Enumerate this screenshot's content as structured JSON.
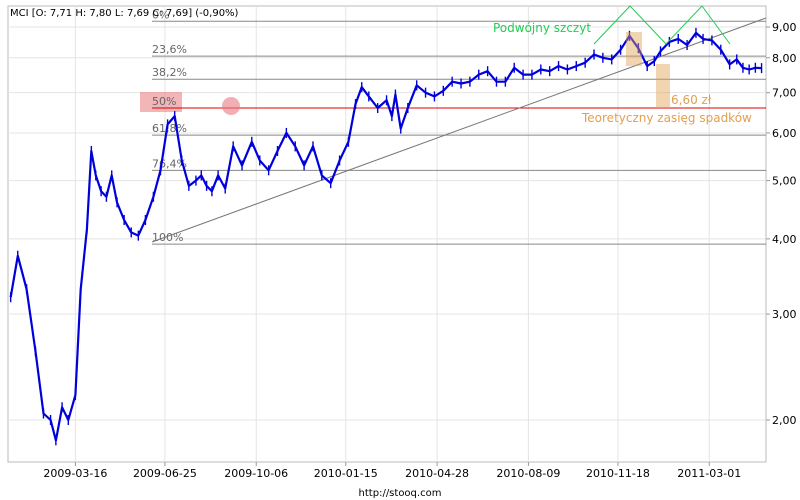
{
  "header": {
    "ohlc_label": "MCI [O: 7,71  H: 7,80  L: 7,69  C: 7,69] (-0,90%)"
  },
  "footer": {
    "source": "http://stooq.com"
  },
  "annotations": {
    "double_top": "Podwójny szczyt",
    "target_value": "6,60 zł",
    "target_label": "Teoretyczny zasięg spadków"
  },
  "fibonacci": [
    {
      "label": "0%",
      "price": 9.2
    },
    {
      "label": "23,6%",
      "price": 8.05
    },
    {
      "label": "38,2%",
      "price": 7.37
    },
    {
      "label": "50%",
      "price": 6.6
    },
    {
      "label": "61,8%",
      "price": 5.95
    },
    {
      "label": "76,4%",
      "price": 5.2
    },
    {
      "label": "100%",
      "price": 3.92
    }
  ],
  "colors": {
    "price_line": "#0000dd",
    "fib_line": "#888888",
    "fib_50_line": "#dd0000",
    "trendline": "#777777",
    "double_top": "#22cc55",
    "target": "#e0a050",
    "highlight_red": "#e87a80"
  },
  "chart_data": {
    "type": "line",
    "title": "MCI",
    "xlabel": "",
    "ylabel": "",
    "y_scale": "log",
    "ylim": [
      1.72,
      9.5
    ],
    "y_ticks": [
      {
        "value": 2.0,
        "label": "2,00"
      },
      {
        "value": 3.0,
        "label": "3,00"
      },
      {
        "value": 4.0,
        "label": "4,00"
      },
      {
        "value": 5.0,
        "label": "5,00"
      },
      {
        "value": 6.0,
        "label": "6,00"
      },
      {
        "value": 7.0,
        "label": "7,00"
      },
      {
        "value": 8.0,
        "label": "8,00"
      },
      {
        "value": 9.0,
        "label": "9,00"
      }
    ],
    "x_range": [
      "2008-12-30",
      "2011-05-04"
    ],
    "x_ticks": [
      "2009-03-16",
      "2009-06-25",
      "2009-10-06",
      "2010-01-15",
      "2010-04-28",
      "2010-08-09",
      "2010-11-18",
      "2011-03-01"
    ],
    "grid": true,
    "series": [
      {
        "name": "MCI",
        "x": [
          "2009-01-02",
          "2009-01-10",
          "2009-01-20",
          "2009-01-30",
          "2009-02-08",
          "2009-02-16",
          "2009-02-22",
          "2009-03-01",
          "2009-03-08",
          "2009-03-16",
          "2009-03-22",
          "2009-03-29",
          "2009-04-03",
          "2009-04-08",
          "2009-04-14",
          "2009-04-20",
          "2009-04-26",
          "2009-05-02",
          "2009-05-10",
          "2009-05-18",
          "2009-05-26",
          "2009-06-03",
          "2009-06-12",
          "2009-06-20",
          "2009-06-28",
          "2009-07-06",
          "2009-07-14",
          "2009-07-22",
          "2009-07-30",
          "2009-08-05",
          "2009-08-11",
          "2009-08-17",
          "2009-08-24",
          "2009-09-01",
          "2009-09-10",
          "2009-09-20",
          "2009-10-01",
          "2009-10-10",
          "2009-10-20",
          "2009-10-30",
          "2009-11-09",
          "2009-11-19",
          "2009-11-29",
          "2009-12-09",
          "2009-12-19",
          "2009-12-29",
          "2010-01-08",
          "2010-01-18",
          "2010-01-26",
          "2010-02-02",
          "2010-02-10",
          "2010-02-20",
          "2010-03-02",
          "2010-03-08",
          "2010-03-12",
          "2010-03-18",
          "2010-03-26",
          "2010-04-05",
          "2010-04-15",
          "2010-04-25",
          "2010-05-05",
          "2010-05-15",
          "2010-05-25",
          "2010-06-04",
          "2010-06-14",
          "2010-06-24",
          "2010-07-04",
          "2010-07-14",
          "2010-07-24",
          "2010-08-03",
          "2010-08-13",
          "2010-08-23",
          "2010-09-02",
          "2010-09-12",
          "2010-09-22",
          "2010-10-02",
          "2010-10-12",
          "2010-10-22",
          "2010-11-01",
          "2010-11-11",
          "2010-11-21",
          "2010-12-01",
          "2010-12-11",
          "2010-12-21",
          "2010-12-29",
          "2011-01-05",
          "2011-01-15",
          "2011-01-25",
          "2011-02-04",
          "2011-02-14",
          "2011-02-22",
          "2011-03-04",
          "2011-03-14",
          "2011-03-24",
          "2011-04-01",
          "2011-04-08",
          "2011-04-15",
          "2011-04-22",
          "2011-04-29"
        ],
        "y": [
          3.2,
          3.75,
          3.3,
          2.6,
          2.05,
          2.0,
          1.85,
          2.1,
          2.0,
          2.2,
          3.3,
          4.15,
          5.6,
          5.1,
          4.8,
          4.7,
          5.1,
          4.6,
          4.3,
          4.1,
          4.05,
          4.3,
          4.7,
          5.2,
          6.2,
          6.4,
          5.4,
          4.9,
          5.0,
          5.1,
          4.9,
          4.8,
          5.1,
          4.85,
          5.7,
          5.3,
          5.8,
          5.4,
          5.2,
          5.6,
          6.0,
          5.7,
          5.3,
          5.7,
          5.1,
          4.95,
          5.4,
          5.8,
          6.7,
          7.15,
          6.9,
          6.6,
          6.8,
          6.4,
          6.95,
          6.1,
          6.6,
          7.2,
          7.0,
          6.9,
          7.05,
          7.3,
          7.25,
          7.3,
          7.5,
          7.6,
          7.3,
          7.3,
          7.7,
          7.5,
          7.5,
          7.65,
          7.6,
          7.75,
          7.65,
          7.75,
          7.85,
          8.1,
          8.0,
          7.95,
          8.25,
          8.7,
          8.3,
          7.75,
          7.9,
          8.2,
          8.5,
          8.6,
          8.4,
          8.8,
          8.6,
          8.55,
          8.25,
          7.8,
          7.95,
          7.7,
          7.65,
          7.7,
          7.69
        ]
      }
    ]
  }
}
